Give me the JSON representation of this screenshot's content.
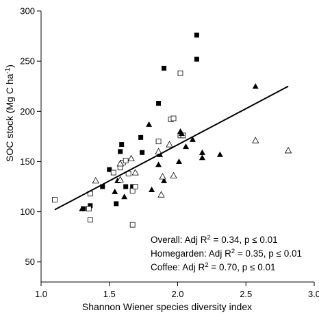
{
  "chart_data": {
    "type": "scatter",
    "title": "",
    "xlabel": "Shannon Wiener species diversity index",
    "ylabel_main": "SOC stock (Mg C ha",
    "ylabel_sup": "-1",
    "ylabel_close": ")",
    "xlim": [
      1.0,
      3.0
    ],
    "ylim": [
      30,
      300
    ],
    "xticks": [
      1.0,
      1.5,
      2.0,
      2.5,
      3.0
    ],
    "xtick_labels": [
      "1.0",
      "1.5",
      "2.0",
      "2.5",
      "3.0"
    ],
    "yticks": [
      50,
      100,
      150,
      200,
      250,
      300
    ],
    "ytick_labels": [
      "50",
      "100",
      "150",
      "200",
      "250",
      "300"
    ],
    "grid": false,
    "markers": {
      "filled_square": "■ filled square",
      "open_square": "□ open square",
      "filled_triangle": "▲ filled triangle",
      "open_triangle": "△ open triangle"
    },
    "series": [
      {
        "marker": "filled_square",
        "points": [
          [
            1.31,
            103
          ],
          [
            1.36,
            106
          ],
          [
            1.45,
            125
          ],
          [
            1.5,
            142
          ],
          [
            1.55,
            108
          ],
          [
            1.58,
            160
          ],
          [
            1.59,
            167
          ],
          [
            1.62,
            125
          ],
          [
            1.67,
            125
          ],
          [
            1.73,
            174
          ],
          [
            1.74,
            159
          ],
          [
            1.86,
            208
          ],
          [
            1.9,
            243
          ],
          [
            2.14,
            276
          ],
          [
            2.14,
            252
          ]
        ]
      },
      {
        "marker": "open_square",
        "points": [
          [
            1.1,
            112
          ],
          [
            1.35,
            103
          ],
          [
            1.36,
            118
          ],
          [
            1.36,
            92
          ],
          [
            1.53,
            139
          ],
          [
            1.58,
            144
          ],
          [
            1.6,
            149
          ],
          [
            1.62,
            151
          ],
          [
            1.64,
            138
          ],
          [
            1.67,
            121
          ],
          [
            1.67,
            87
          ],
          [
            1.69,
            125
          ],
          [
            1.86,
            170
          ],
          [
            1.95,
            192
          ],
          [
            1.97,
            193
          ],
          [
            2.02,
            176
          ],
          [
            2.02,
            238
          ],
          [
            2.04,
            176
          ]
        ]
      },
      {
        "marker": "filled_triangle",
        "points": [
          [
            1.3,
            103
          ],
          [
            1.54,
            120
          ],
          [
            1.56,
            131
          ],
          [
            1.61,
            115
          ],
          [
            1.79,
            187
          ],
          [
            1.81,
            122
          ],
          [
            1.86,
            147
          ],
          [
            1.87,
            157
          ],
          [
            1.9,
            131
          ],
          [
            2.01,
            150
          ],
          [
            2.02,
            180
          ],
          [
            2.03,
            178
          ],
          [
            2.06,
            165
          ],
          [
            2.11,
            172
          ],
          [
            2.18,
            159
          ],
          [
            2.18,
            154
          ],
          [
            2.31,
            157
          ],
          [
            2.57,
            225
          ]
        ]
      },
      {
        "marker": "open_triangle",
        "points": [
          [
            1.4,
            131
          ],
          [
            1.58,
            132
          ],
          [
            1.58,
            148
          ],
          [
            1.66,
            153
          ],
          [
            1.69,
            139
          ],
          [
            1.86,
            160
          ],
          [
            1.88,
            117
          ],
          [
            1.89,
            135
          ],
          [
            1.94,
            167
          ],
          [
            1.97,
            136
          ],
          [
            2.57,
            171
          ],
          [
            2.81,
            161
          ]
        ]
      }
    ],
    "regression_line": {
      "x": [
        1.1,
        2.81
      ],
      "y": [
        102,
        225
      ]
    },
    "annotations": [
      {
        "pre": "Overall: Adj R",
        "sup": "2",
        "post": " = 0.34, p ≤ 0.01"
      },
      {
        "pre": "Homegarden: Adj R",
        "sup": "2",
        "post": " = 0.35, p ≤ 0.01"
      },
      {
        "pre": "Coffee: Adj R",
        "sup": "2",
        "post": " = 0.70, p ≤ 0.01"
      }
    ]
  }
}
